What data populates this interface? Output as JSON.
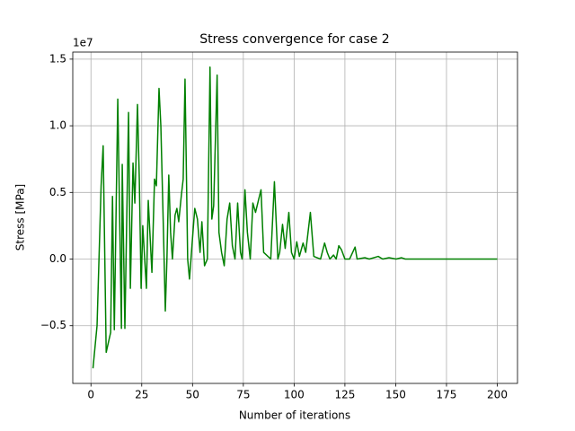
{
  "chart_data": {
    "type": "line",
    "title": "Stress convergence for case 2",
    "x_label": "Number of iterations",
    "y_label": "Stress [MPa]",
    "y_offset_label": "1e7",
    "x": [
      1,
      3,
      5,
      6,
      7.5,
      9.7,
      10.6,
      11.5,
      13.2,
      15,
      15.4,
      16.7,
      18.5,
      19.4,
      20.7,
      21.6,
      22.9,
      23.8,
      24.7,
      25.5,
      27.3,
      28.2,
      30,
      31.3,
      32.2,
      33.5,
      34.4,
      35.7,
      36.6,
      37.4,
      38.3,
      39.2,
      40.1,
      41.4,
      42.3,
      43.2,
      44.5,
      45.4,
      46.3,
      47.6,
      48.5,
      50.2,
      51.1,
      52.4,
      53.7,
      54.6,
      55.9,
      57.3,
      58.6,
      59.5,
      60.4,
      62.1,
      63,
      64.3,
      65.6,
      67,
      68.3,
      69.6,
      70.9,
      72.2,
      73.6,
      74.4,
      75.8,
      77,
      78.4,
      79.7,
      81,
      83.7,
      85,
      88.5,
      90.3,
      92,
      92.9,
      94.3,
      95.6,
      97.4,
      98.7,
      100,
      101.3,
      102.6,
      104.4,
      105.7,
      108,
      109.7,
      113,
      115,
      116.3,
      117.6,
      119.4,
      120.7,
      122,
      123.3,
      125,
      127.3,
      130,
      131,
      134.8,
      137,
      141.4,
      143.6,
      146.7,
      150.2,
      152.9,
      154.7,
      200
    ],
    "series": [
      {
        "color": "#008000",
        "values": [
          -0.82,
          -0.5,
          0.55,
          0.85,
          -0.7,
          -0.55,
          0.47,
          -0.53,
          1.2,
          -0.52,
          0.71,
          -0.52,
          1.1,
          -0.22,
          0.72,
          0.42,
          1.16,
          0.6,
          -0.22,
          0.25,
          -0.22,
          0.44,
          -0.1,
          0.6,
          0.55,
          1.28,
          1.0,
          0.2,
          -0.39,
          0,
          0.63,
          0.2,
          0,
          0.33,
          0.38,
          0.28,
          0.48,
          0.6,
          1.35,
          0,
          -0.15,
          0.2,
          0.38,
          0.3,
          0.05,
          0.28,
          -0.05,
          0,
          1.44,
          0.3,
          0.4,
          1.38,
          0.2,
          0.05,
          -0.05,
          0.3,
          0.42,
          0.1,
          0,
          0.42,
          0.05,
          0,
          0.52,
          0.2,
          0,
          0.42,
          0.35,
          0.52,
          0.05,
          0,
          0.58,
          0,
          0.05,
          0.26,
          0.08,
          0.35,
          0.05,
          0,
          0.13,
          0.02,
          0.12,
          0.05,
          0.35,
          0.02,
          0,
          0.12,
          0.05,
          0,
          0.03,
          0,
          0.1,
          0.07,
          0,
          0,
          0.09,
          0,
          0.01,
          0,
          0.02,
          0,
          0.01,
          0,
          0.01,
          0,
          0
        ]
      }
    ],
    "xlim": [
      -8.95,
      209.95
    ],
    "xticks": [
      0,
      25,
      50,
      75,
      100,
      125,
      150,
      175,
      200
    ],
    "ylim": [
      -0.933,
      1.553
    ],
    "yticks": [
      {
        "value": -0.5,
        "label": "−0.5"
      },
      {
        "value": 0,
        "label": "0.0"
      },
      0.5,
      {
        "value": 1,
        "label": "1.0"
      },
      1.5
    ],
    "grid": true
  }
}
